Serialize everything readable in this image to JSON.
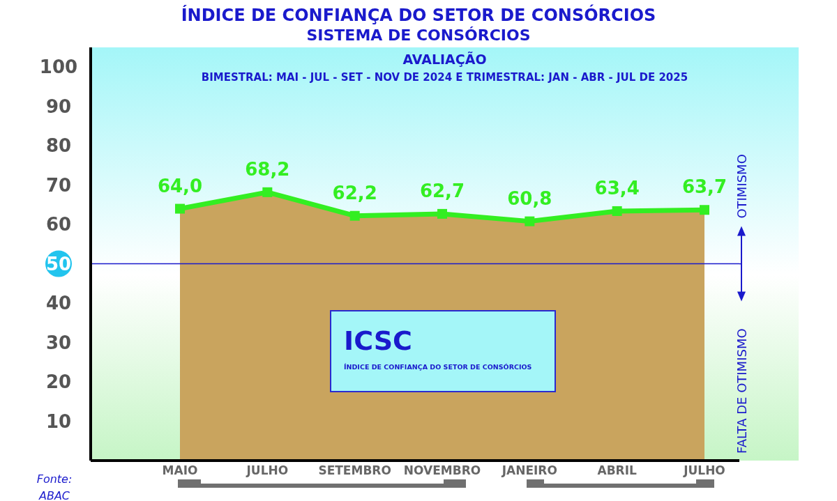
{
  "chart_data": {
    "type": "area",
    "title": "ÍNDICE DE CONFIANÇA DO SETOR DE CONSÓRCIOS",
    "subtitle": "SISTEMA DE CONSÓRCIOS",
    "categories": [
      "MAIO",
      "JULHO",
      "SETEMBRO",
      "NOVEMBRO",
      "JANEIRO",
      "ABRIL",
      "JULHO"
    ],
    "series": [
      {
        "color": "#33ee22",
        "values": [
          64.0,
          68.2,
          62.2,
          62.7,
          60.8,
          63.4,
          63.7
        ],
        "value_labels": [
          "64,0",
          "68,2",
          "62,2",
          "62,7",
          "60,8",
          "63,4",
          "63,7"
        ]
      }
    ],
    "ylim": [
      0,
      105
    ],
    "yticks": [
      10,
      20,
      30,
      40,
      50,
      60,
      70,
      80,
      90,
      100
    ],
    "marker": "square",
    "ref_lines": [
      {
        "axis": "y",
        "value": 50,
        "color": "#1a1acc"
      }
    ],
    "annotations": [
      "AVALIAÇÃO",
      "BIMESTRAL: MAI - JUL - SET - NOV DE 2024 E TRIMESTRAL: JAN - ABR - JUL DE 2025",
      "ICSC",
      "ÍNDICE DE CONFIANÇA DO SETOR DE CONSÓRCIOS",
      "OTIMISMO",
      "FALTA DE OTIMISMO",
      "Fonte: ABAC"
    ]
  }
}
